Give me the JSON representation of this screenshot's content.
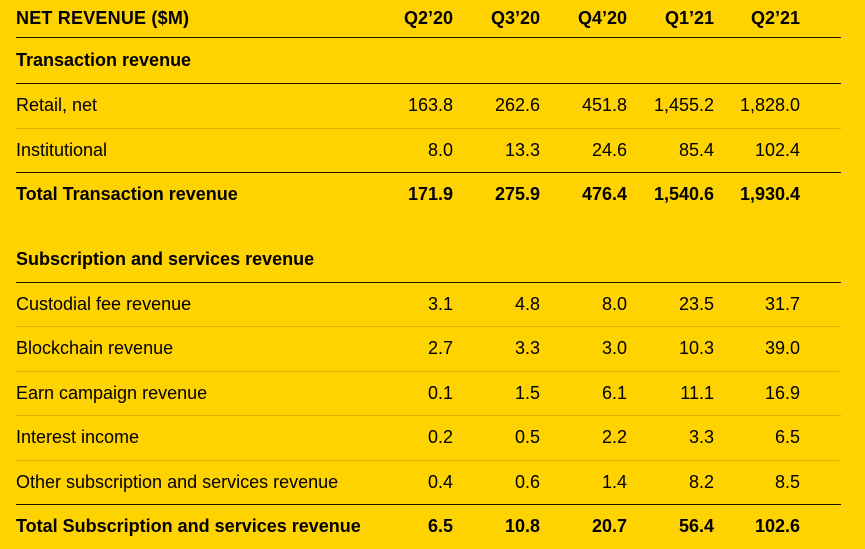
{
  "header": {
    "title": "NET REVENUE ($M)",
    "columns": [
      "Q2’20",
      "Q3’20",
      "Q4’20",
      "Q1’21",
      "Q2’21"
    ]
  },
  "transaction": {
    "heading": "Transaction revenue",
    "rows": [
      {
        "label": "Retail, net",
        "values": [
          "163.8",
          "262.6",
          "451.8",
          "1,455.2",
          "1,828.0"
        ]
      },
      {
        "label": "Institutional",
        "values": [
          "8.0",
          "13.3",
          "24.6",
          "85.4",
          "102.4"
        ]
      }
    ],
    "total": {
      "label": "Total Transaction revenue",
      "values": [
        "171.9",
        "275.9",
        "476.4",
        "1,540.6",
        "1,930.4"
      ]
    }
  },
  "subscription": {
    "heading": "Subscription and services revenue",
    "rows": [
      {
        "label": "Custodial fee revenue",
        "values": [
          "3.1",
          "4.8",
          "8.0",
          "23.5",
          "31.7"
        ]
      },
      {
        "label": "Blockchain revenue",
        "values": [
          "2.7",
          "3.3",
          "3.0",
          "10.3",
          "39.0"
        ]
      },
      {
        "label": "Earn campaign revenue",
        "values": [
          "0.1",
          "1.5",
          "6.1",
          "11.1",
          "16.9"
        ]
      },
      {
        "label": "Interest income",
        "values": [
          "0.2",
          "0.5",
          "2.2",
          "3.3",
          "6.5"
        ]
      },
      {
        "label": "Other subscription and services revenue",
        "values": [
          "0.4",
          "0.6",
          "1.4",
          "8.2",
          "8.5"
        ]
      }
    ],
    "total": {
      "label": "Total Subscription and services revenue",
      "values": [
        "6.5",
        "10.8",
        "20.7",
        "56.4",
        "102.6"
      ]
    }
  },
  "colors": {
    "background": "#FFD300",
    "text": "#000000"
  }
}
